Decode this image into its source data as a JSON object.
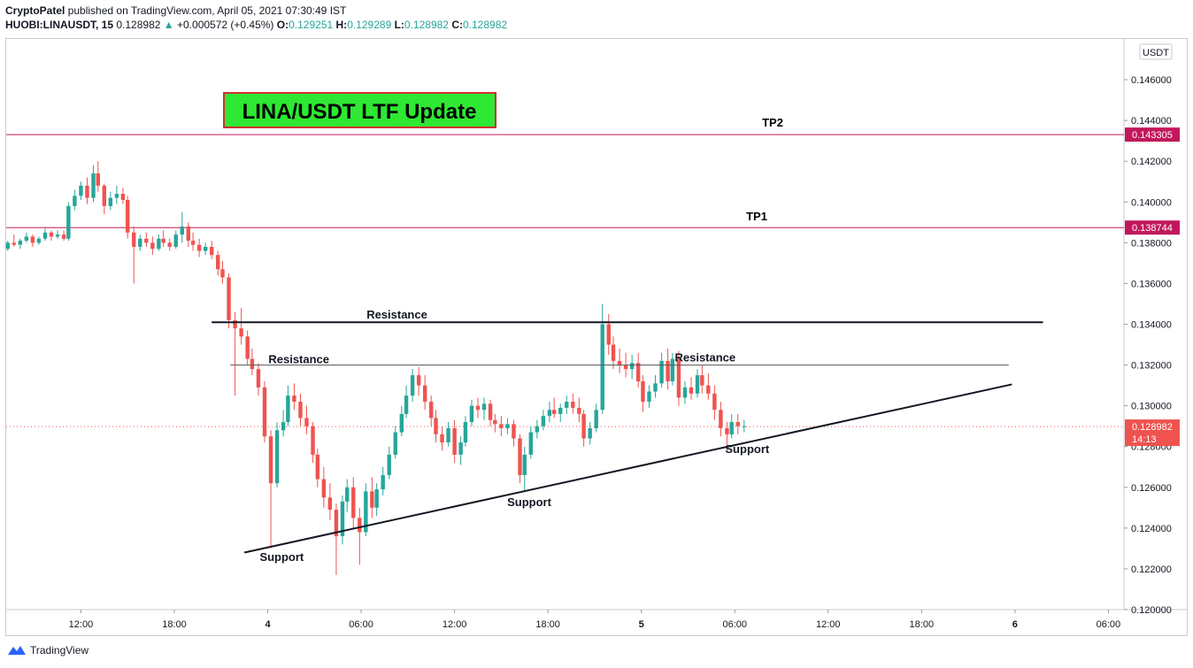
{
  "header": {
    "author": "CryptoPatel",
    "published_text": "published on TradingView.com, April 05, 2021 07:30:49 IST",
    "symbol": "HUOBI:LINAUSDT, 15",
    "last": "0.128982",
    "change": "+0.000572 (+0.45%)",
    "o_label": "O:",
    "o_value": "0.129251",
    "h_label": "H:",
    "h_value": "0.129289",
    "l_label": "L:",
    "l_value": "0.128982",
    "c_label": "C:",
    "c_value": "0.128982"
  },
  "footer": {
    "brand": "TradingView"
  },
  "colors": {
    "up": "#26a69a",
    "down": "#ef5350",
    "tp": "#c2185b",
    "title_bg": "#2ee833",
    "title_border": "#d32f2f"
  },
  "chart_data": {
    "type": "candlestick",
    "title": "LINA/USDT LTF Update",
    "currency_label": "USDT",
    "y_ticks": [
      "0.146000",
      "0.144000",
      "0.142000",
      "0.140000",
      "0.138000",
      "0.136000",
      "0.134000",
      "0.132000",
      "0.130000",
      "0.128000",
      "0.126000",
      "0.124000",
      "0.122000",
      "0.120000"
    ],
    "y_tick_values": [
      0.146,
      0.144,
      0.142,
      0.14,
      0.138,
      0.136,
      0.134,
      0.132,
      0.13,
      0.128,
      0.126,
      0.124,
      0.122,
      0.12
    ],
    "ylim": [
      0.12,
      0.148
    ],
    "x_ticks": [
      "12:00",
      "18:00",
      "4",
      "06:00",
      "12:00",
      "18:00",
      "5",
      "06:00",
      "12:00",
      "18:00",
      "6",
      "06:00"
    ],
    "x_tick_hours": [
      12,
      18,
      24,
      30,
      36,
      42,
      48,
      54,
      60,
      66,
      72,
      78
    ],
    "xlim_hours": [
      7.2,
      79
    ],
    "price_labels": [
      {
        "text": "0.143305",
        "value": 0.143305,
        "color": "#c2185b"
      },
      {
        "text": "0.138744",
        "value": 0.138744,
        "color": "#c2185b"
      },
      {
        "text": "0.128982",
        "sub": "14:13",
        "value": 0.128982,
        "color": "#ef5350"
      }
    ],
    "levels": [
      {
        "label": "TP2",
        "value": 0.143305
      },
      {
        "label": "TP1",
        "value": 0.138744
      }
    ],
    "current_price": 0.128982,
    "annotations": [
      {
        "text": "Resistance",
        "x": 26.0,
        "y": 0.132
      },
      {
        "text": "Resistance",
        "x": 32.3,
        "y": 0.1342
      },
      {
        "text": "Resistance",
        "x": 52.1,
        "y": 0.1321
      },
      {
        "text": "Support",
        "x": 24.9,
        "y": 0.1223
      },
      {
        "text": "Support",
        "x": 40.8,
        "y": 0.125
      },
      {
        "text": "Support",
        "x": 54.8,
        "y": 0.1276
      }
    ],
    "lines": [
      {
        "name": "resistance-upper",
        "x1": 20.4,
        "y1": 0.1341,
        "x2": 73.8,
        "y2": 0.1341,
        "width": 2
      },
      {
        "name": "resistance-lower",
        "x1": 21.6,
        "y1": 0.132,
        "x2": 71.6,
        "y2": 0.132,
        "width": 1
      },
      {
        "name": "support-trendline",
        "x1": 22.5,
        "y1": 0.1228,
        "x2": 71.8,
        "y2": 0.13105,
        "width": 2
      }
    ],
    "candles": [
      [
        7.3,
        0.1377,
        0.1381,
        0.1376,
        0.138
      ],
      [
        7.7,
        0.138,
        0.1384,
        0.1378,
        0.1379
      ],
      [
        8.1,
        0.1379,
        0.1382,
        0.1377,
        0.1381
      ],
      [
        8.5,
        0.1381,
        0.1385,
        0.138,
        0.1383
      ],
      [
        8.9,
        0.1383,
        0.1384,
        0.1378,
        0.138
      ],
      [
        9.3,
        0.138,
        0.1383,
        0.1379,
        0.1382
      ],
      [
        9.7,
        0.1382,
        0.1387,
        0.1381,
        0.1385
      ],
      [
        10.1,
        0.1385,
        0.1386,
        0.1381,
        0.1383
      ],
      [
        10.5,
        0.1383,
        0.1386,
        0.1382,
        0.1384
      ],
      [
        10.9,
        0.1384,
        0.1386,
        0.1381,
        0.1382
      ],
      [
        11.2,
        0.1382,
        0.14,
        0.1381,
        0.1398
      ],
      [
        11.6,
        0.1398,
        0.1406,
        0.1396,
        0.1403
      ],
      [
        12.0,
        0.1403,
        0.141,
        0.1401,
        0.1408
      ],
      [
        12.4,
        0.1408,
        0.1412,
        0.1399,
        0.1402
      ],
      [
        12.8,
        0.1402,
        0.1418,
        0.14,
        0.1414
      ],
      [
        13.1,
        0.1414,
        0.142,
        0.1405,
        0.1408
      ],
      [
        13.5,
        0.1408,
        0.1409,
        0.1394,
        0.1398
      ],
      [
        13.9,
        0.1398,
        0.1405,
        0.1396,
        0.1402
      ],
      [
        14.3,
        0.1402,
        0.1408,
        0.1399,
        0.1404
      ],
      [
        14.7,
        0.1404,
        0.1407,
        0.1399,
        0.1401
      ],
      [
        15.0,
        0.1401,
        0.1403,
        0.1382,
        0.1385
      ],
      [
        15.4,
        0.1385,
        0.1388,
        0.136,
        0.1378
      ],
      [
        15.8,
        0.1378,
        0.1384,
        0.1376,
        0.1382
      ],
      [
        16.2,
        0.1382,
        0.1385,
        0.1378,
        0.138
      ],
      [
        16.6,
        0.138,
        0.1383,
        0.1374,
        0.1377
      ],
      [
        17.0,
        0.1377,
        0.1384,
        0.1376,
        0.1382
      ],
      [
        17.3,
        0.1382,
        0.1386,
        0.1378,
        0.138
      ],
      [
        17.7,
        0.138,
        0.1382,
        0.1376,
        0.1378
      ],
      [
        18.1,
        0.1378,
        0.1386,
        0.1377,
        0.1384
      ],
      [
        18.5,
        0.1384,
        0.1395,
        0.138,
        0.1388
      ],
      [
        18.9,
        0.1388,
        0.139,
        0.1378,
        0.1381
      ],
      [
        19.2,
        0.1381,
        0.1385,
        0.1376,
        0.1379
      ],
      [
        19.6,
        0.1379,
        0.1382,
        0.1373,
        0.1376
      ],
      [
        20.0,
        0.1376,
        0.138,
        0.1374,
        0.1378
      ],
      [
        20.4,
        0.1378,
        0.1381,
        0.1372,
        0.1374
      ],
      [
        20.8,
        0.1374,
        0.1376,
        0.1364,
        0.1367
      ],
      [
        21.1,
        0.1367,
        0.1371,
        0.136,
        0.1363
      ],
      [
        21.5,
        0.1363,
        0.1365,
        0.1338,
        0.1342
      ],
      [
        21.9,
        0.1342,
        0.1346,
        0.1305,
        0.1338
      ],
      [
        22.3,
        0.1338,
        0.1348,
        0.133,
        0.1334
      ],
      [
        22.7,
        0.1334,
        0.1337,
        0.132,
        0.1323
      ],
      [
        23.0,
        0.1323,
        0.1328,
        0.1315,
        0.1318
      ],
      [
        23.4,
        0.1318,
        0.1321,
        0.1305,
        0.1309
      ],
      [
        23.8,
        0.1309,
        0.1312,
        0.1282,
        0.1285
      ],
      [
        24.2,
        0.1285,
        0.1288,
        0.123,
        0.1262
      ],
      [
        24.6,
        0.1262,
        0.1292,
        0.126,
        0.1288
      ],
      [
        25.0,
        0.1288,
        0.1298,
        0.1285,
        0.1292
      ],
      [
        25.3,
        0.1292,
        0.131,
        0.129,
        0.1305
      ],
      [
        25.7,
        0.1305,
        0.1311,
        0.1298,
        0.1302
      ],
      [
        26.1,
        0.1302,
        0.1306,
        0.129,
        0.1294
      ],
      [
        26.5,
        0.1294,
        0.13,
        0.1286,
        0.129
      ],
      [
        26.9,
        0.129,
        0.1292,
        0.1272,
        0.1276
      ],
      [
        27.2,
        0.1276,
        0.1279,
        0.126,
        0.1264
      ],
      [
        27.6,
        0.1264,
        0.127,
        0.125,
        0.1255
      ],
      [
        28.0,
        0.1255,
        0.1262,
        0.1244,
        0.1249
      ],
      [
        28.4,
        0.1249,
        0.1252,
        0.1217,
        0.1236
      ],
      [
        28.8,
        0.1236,
        0.1256,
        0.1232,
        0.1253
      ],
      [
        29.1,
        0.1253,
        0.1264,
        0.1248,
        0.126
      ],
      [
        29.5,
        0.126,
        0.1265,
        0.124,
        0.1245
      ],
      [
        29.9,
        0.1245,
        0.125,
        0.1222,
        0.1238
      ],
      [
        30.3,
        0.1238,
        0.1262,
        0.1236,
        0.1258
      ],
      [
        30.7,
        0.1258,
        0.1265,
        0.1245,
        0.125
      ],
      [
        31.0,
        0.125,
        0.1262,
        0.1246,
        0.1259
      ],
      [
        31.4,
        0.1259,
        0.127,
        0.1256,
        0.1266
      ],
      [
        31.8,
        0.1266,
        0.128,
        0.1264,
        0.1276
      ],
      [
        32.2,
        0.1276,
        0.129,
        0.1274,
        0.1287
      ],
      [
        32.6,
        0.1287,
        0.13,
        0.1285,
        0.1296
      ],
      [
        32.9,
        0.1296,
        0.131,
        0.1294,
        0.1305
      ],
      [
        33.3,
        0.1305,
        0.1318,
        0.1302,
        0.1315
      ],
      [
        33.7,
        0.1315,
        0.1319,
        0.1305,
        0.131
      ],
      [
        34.1,
        0.131,
        0.1315,
        0.1298,
        0.1302
      ],
      [
        34.5,
        0.1302,
        0.1305,
        0.129,
        0.1294
      ],
      [
        34.8,
        0.1294,
        0.1298,
        0.1282,
        0.1286
      ],
      [
        35.2,
        0.1286,
        0.129,
        0.1278,
        0.1282
      ],
      [
        35.6,
        0.1282,
        0.1292,
        0.128,
        0.1289
      ],
      [
        36.0,
        0.1289,
        0.1293,
        0.1272,
        0.1276
      ],
      [
        36.4,
        0.1276,
        0.1285,
        0.1271,
        0.1282
      ],
      [
        36.7,
        0.1282,
        0.1295,
        0.128,
        0.1292
      ],
      [
        37.1,
        0.1292,
        0.1303,
        0.129,
        0.13
      ],
      [
        37.5,
        0.13,
        0.1304,
        0.1294,
        0.1298
      ],
      [
        37.9,
        0.1298,
        0.1304,
        0.1293,
        0.1301
      ],
      [
        38.3,
        0.1301,
        0.1303,
        0.129,
        0.1293
      ],
      [
        38.6,
        0.1293,
        0.1296,
        0.1287,
        0.1291
      ],
      [
        39.0,
        0.1291,
        0.1295,
        0.1285,
        0.1289
      ],
      [
        39.4,
        0.1289,
        0.1294,
        0.1286,
        0.1291
      ],
      [
        39.8,
        0.1291,
        0.1293,
        0.128,
        0.1284
      ],
      [
        40.2,
        0.1284,
        0.1286,
        0.1262,
        0.1266
      ],
      [
        40.5,
        0.1266,
        0.128,
        0.1258,
        0.1276
      ],
      [
        40.9,
        0.1276,
        0.129,
        0.1274,
        0.1287
      ],
      [
        41.3,
        0.1287,
        0.1293,
        0.1284,
        0.129
      ],
      [
        41.7,
        0.129,
        0.1298,
        0.1288,
        0.1295
      ],
      [
        42.1,
        0.1295,
        0.1302,
        0.1292,
        0.1298
      ],
      [
        42.4,
        0.1298,
        0.1304,
        0.1294,
        0.1296
      ],
      [
        42.8,
        0.1296,
        0.1301,
        0.1292,
        0.1299
      ],
      [
        43.2,
        0.1299,
        0.1305,
        0.1296,
        0.1302
      ],
      [
        43.6,
        0.1302,
        0.1306,
        0.1296,
        0.1299
      ],
      [
        44.0,
        0.1299,
        0.1304,
        0.1292,
        0.1296
      ],
      [
        44.3,
        0.1296,
        0.1298,
        0.128,
        0.1284
      ],
      [
        44.7,
        0.1284,
        0.1292,
        0.1281,
        0.1289
      ],
      [
        45.1,
        0.1289,
        0.1301,
        0.1287,
        0.1298
      ],
      [
        45.5,
        0.1298,
        0.135,
        0.1296,
        0.134
      ],
      [
        45.9,
        0.134,
        0.1345,
        0.1325,
        0.133
      ],
      [
        46.2,
        0.133,
        0.1334,
        0.1318,
        0.1322
      ],
      [
        46.6,
        0.1322,
        0.1328,
        0.1316,
        0.132
      ],
      [
        47.0,
        0.132,
        0.1326,
        0.1314,
        0.1318
      ],
      [
        47.4,
        0.1318,
        0.1325,
        0.1313,
        0.1321
      ],
      [
        47.8,
        0.1321,
        0.1326,
        0.1309,
        0.1312
      ],
      [
        48.1,
        0.1312,
        0.1315,
        0.1297,
        0.1302
      ],
      [
        48.5,
        0.1302,
        0.131,
        0.1299,
        0.1307
      ],
      [
        48.9,
        0.1307,
        0.1315,
        0.1304,
        0.1311
      ],
      [
        49.3,
        0.1311,
        0.1326,
        0.1309,
        0.1322
      ],
      [
        49.7,
        0.1322,
        0.1328,
        0.1308,
        0.1312
      ],
      [
        50.0,
        0.1312,
        0.1326,
        0.131,
        0.1323
      ],
      [
        50.4,
        0.1323,
        0.1327,
        0.13,
        0.1304
      ],
      [
        50.8,
        0.1304,
        0.1312,
        0.1301,
        0.1309
      ],
      [
        51.2,
        0.1309,
        0.1314,
        0.1303,
        0.1306
      ],
      [
        51.6,
        0.1306,
        0.1318,
        0.1304,
        0.1315
      ],
      [
        51.9,
        0.1315,
        0.132,
        0.1306,
        0.131
      ],
      [
        52.3,
        0.131,
        0.1316,
        0.1303,
        0.1306
      ],
      [
        52.7,
        0.1306,
        0.131,
        0.1293,
        0.1298
      ],
      [
        53.1,
        0.1298,
        0.1302,
        0.1285,
        0.1289
      ],
      [
        53.5,
        0.1289,
        0.1292,
        0.1278,
        0.1286
      ],
      [
        53.8,
        0.1286,
        0.1296,
        0.1284,
        0.1292
      ],
      [
        54.2,
        0.1292,
        0.1296,
        0.1286,
        0.129
      ],
      [
        54.6,
        0.129,
        0.1293,
        0.1287,
        0.129
      ]
    ]
  }
}
